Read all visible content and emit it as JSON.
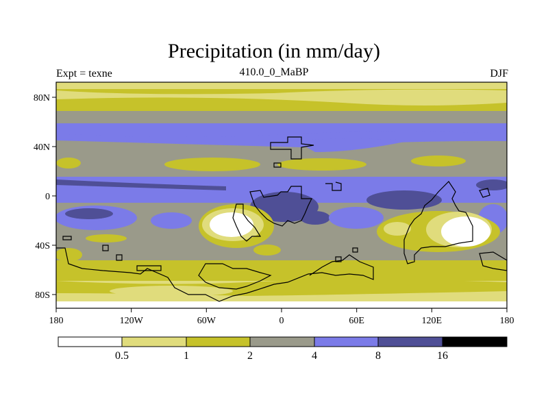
{
  "title": "Precipitation (in mm/day)",
  "subtitle_left": "Expt = texne",
  "subtitle_center": "410.0_0_MaBP",
  "subtitle_right": "DJF",
  "colors": {
    "c0": "#ffffff",
    "c1": "#e0dc7c",
    "c2": "#c6c22a",
    "c3": "#9a9a8a",
    "c4": "#7b7be8",
    "c5": "#4f4f96",
    "c6": "#000000"
  },
  "chart_data": {
    "type": "heatmap",
    "title": "Precipitation (in mm/day)",
    "x_ticks": [
      "180",
      "120W",
      "60W",
      "0",
      "60E",
      "120E",
      "180"
    ],
    "y_ticks": [
      "80N",
      "40N",
      "0",
      "40S",
      "80S"
    ],
    "colorbar": {
      "labels": [
        "0.5",
        "1",
        "2",
        "4",
        "8",
        "16"
      ],
      "bins": [
        "<0.5",
        "0.5-1",
        "1-2",
        "2-4",
        "4-8",
        "8-16",
        ">16"
      ]
    }
  }
}
